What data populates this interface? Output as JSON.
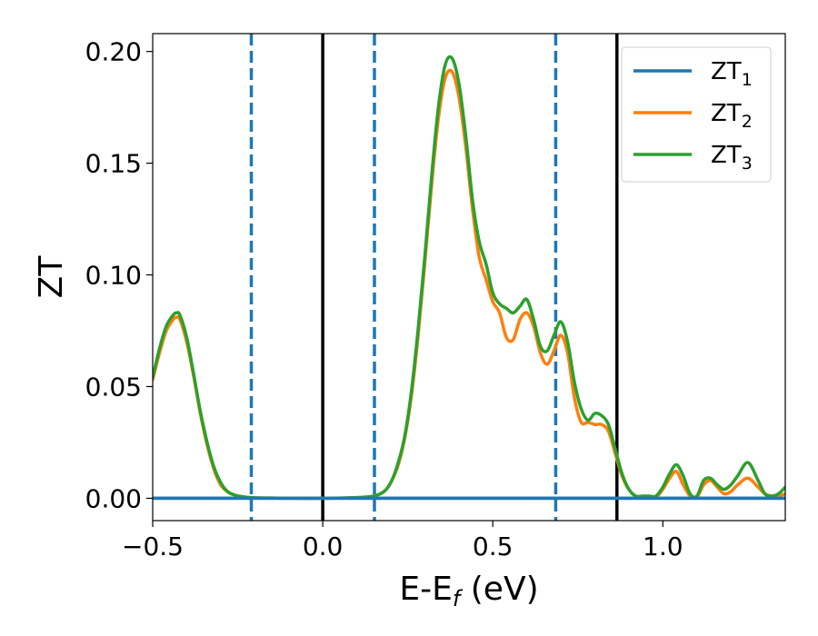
{
  "chart_data": {
    "type": "line",
    "xlabel": {
      "main": "E-E",
      "sub": "f",
      "suffix": " (eV)"
    },
    "ylabel": "ZT",
    "xlim": [
      -0.5,
      1.36
    ],
    "ylim": [
      -0.01,
      0.208
    ],
    "xticks": [
      {
        "value": -0.5,
        "label": "−0.5"
      },
      {
        "value": 0.0,
        "label": "0.0"
      },
      {
        "value": 0.5,
        "label": "0.5"
      },
      {
        "value": 1.0,
        "label": "1.0"
      }
    ],
    "yticks": [
      {
        "value": 0.0,
        "label": "0.00"
      },
      {
        "value": 0.05,
        "label": "0.05"
      },
      {
        "value": 0.1,
        "label": "0.10"
      },
      {
        "value": 0.15,
        "label": "0.15"
      },
      {
        "value": 0.2,
        "label": "0.20"
      }
    ],
    "grid": false,
    "legend_position": "top-right",
    "vlines": [
      {
        "x": -0.21,
        "style": "dashed",
        "color": "#1f77b4"
      },
      {
        "x": 0.0,
        "style": "solid",
        "color": "#000000"
      },
      {
        "x": 0.152,
        "style": "dashed",
        "color": "#1f77b4"
      },
      {
        "x": 0.685,
        "style": "dashed",
        "color": "#1f77b4"
      },
      {
        "x": 0.865,
        "style": "solid",
        "color": "#000000"
      }
    ],
    "series": [
      {
        "name": "ZT",
        "subscript": "1",
        "color": "#1f77b4",
        "x": [
          -0.5,
          1.36
        ],
        "y": [
          0.0,
          0.0
        ]
      },
      {
        "name": "ZT",
        "subscript": "2",
        "color": "#ff7f0e",
        "x": [
          -0.5,
          -0.48,
          -0.46,
          -0.44,
          -0.43,
          -0.42,
          -0.4,
          -0.38,
          -0.36,
          -0.34,
          -0.32,
          -0.3,
          -0.28,
          -0.26,
          -0.24,
          -0.22,
          -0.2,
          -0.15,
          -0.1,
          0.0,
          0.1,
          0.15,
          0.18,
          0.2,
          0.22,
          0.24,
          0.26,
          0.28,
          0.3,
          0.32,
          0.34,
          0.36,
          0.38,
          0.4,
          0.42,
          0.44,
          0.46,
          0.48,
          0.5,
          0.52,
          0.54,
          0.56,
          0.58,
          0.6,
          0.62,
          0.64,
          0.66,
          0.68,
          0.7,
          0.72,
          0.74,
          0.76,
          0.78,
          0.8,
          0.82,
          0.84,
          0.86,
          0.88,
          0.9,
          0.92,
          0.94,
          0.96,
          0.98,
          1.0,
          1.02,
          1.04,
          1.06,
          1.08,
          1.1,
          1.12,
          1.14,
          1.16,
          1.18,
          1.2,
          1.22,
          1.25,
          1.28,
          1.3,
          1.32,
          1.34,
          1.36
        ],
        "y": [
          0.053,
          0.065,
          0.075,
          0.08,
          0.081,
          0.08,
          0.07,
          0.055,
          0.038,
          0.024,
          0.013,
          0.006,
          0.003,
          0.0015,
          0.0008,
          0.0004,
          0.0002,
          0.0001,
          0.0,
          0.0,
          0.0003,
          0.001,
          0.003,
          0.007,
          0.014,
          0.026,
          0.045,
          0.072,
          0.105,
          0.14,
          0.17,
          0.188,
          0.191,
          0.18,
          0.158,
          0.13,
          0.108,
          0.098,
          0.088,
          0.083,
          0.072,
          0.071,
          0.08,
          0.083,
          0.077,
          0.065,
          0.06,
          0.066,
          0.073,
          0.065,
          0.045,
          0.034,
          0.034,
          0.033,
          0.033,
          0.03,
          0.02,
          0.01,
          0.004,
          0.001,
          0.0005,
          0.0005,
          0.0005,
          0.004,
          0.009,
          0.012,
          0.006,
          0.001,
          0.0005,
          0.006,
          0.008,
          0.005,
          0.002,
          0.003,
          0.006,
          0.009,
          0.005,
          0.002,
          0.001,
          0.001,
          0.002
        ]
      },
      {
        "name": "ZT",
        "subscript": "3",
        "color": "#2ca02c",
        "x": [
          -0.5,
          -0.48,
          -0.46,
          -0.44,
          -0.43,
          -0.42,
          -0.4,
          -0.38,
          -0.36,
          -0.34,
          -0.32,
          -0.3,
          -0.28,
          -0.26,
          -0.24,
          -0.22,
          -0.2,
          -0.15,
          -0.1,
          0.0,
          0.1,
          0.15,
          0.18,
          0.2,
          0.22,
          0.24,
          0.26,
          0.28,
          0.3,
          0.32,
          0.34,
          0.36,
          0.38,
          0.4,
          0.42,
          0.44,
          0.46,
          0.48,
          0.5,
          0.52,
          0.54,
          0.56,
          0.58,
          0.6,
          0.62,
          0.64,
          0.66,
          0.68,
          0.7,
          0.72,
          0.74,
          0.76,
          0.78,
          0.8,
          0.82,
          0.84,
          0.86,
          0.88,
          0.9,
          0.92,
          0.94,
          0.96,
          0.98,
          1.0,
          1.02,
          1.04,
          1.06,
          1.08,
          1.1,
          1.12,
          1.14,
          1.16,
          1.18,
          1.2,
          1.22,
          1.25,
          1.28,
          1.3,
          1.32,
          1.34,
          1.36
        ],
        "y": [
          0.054,
          0.067,
          0.077,
          0.082,
          0.083,
          0.082,
          0.072,
          0.056,
          0.039,
          0.025,
          0.014,
          0.007,
          0.003,
          0.0015,
          0.0008,
          0.0004,
          0.0002,
          0.0001,
          0.0,
          0.0,
          0.0003,
          0.001,
          0.003,
          0.007,
          0.015,
          0.027,
          0.047,
          0.075,
          0.108,
          0.144,
          0.175,
          0.194,
          0.197,
          0.186,
          0.163,
          0.134,
          0.115,
          0.105,
          0.092,
          0.087,
          0.085,
          0.083,
          0.086,
          0.089,
          0.08,
          0.068,
          0.066,
          0.073,
          0.079,
          0.07,
          0.052,
          0.04,
          0.035,
          0.038,
          0.037,
          0.033,
          0.022,
          0.011,
          0.004,
          0.001,
          0.001,
          0.001,
          0.001,
          0.005,
          0.011,
          0.015,
          0.01,
          0.002,
          0.001,
          0.008,
          0.009,
          0.006,
          0.004,
          0.006,
          0.01,
          0.016,
          0.008,
          0.002,
          0.001,
          0.002,
          0.005
        ]
      }
    ]
  }
}
